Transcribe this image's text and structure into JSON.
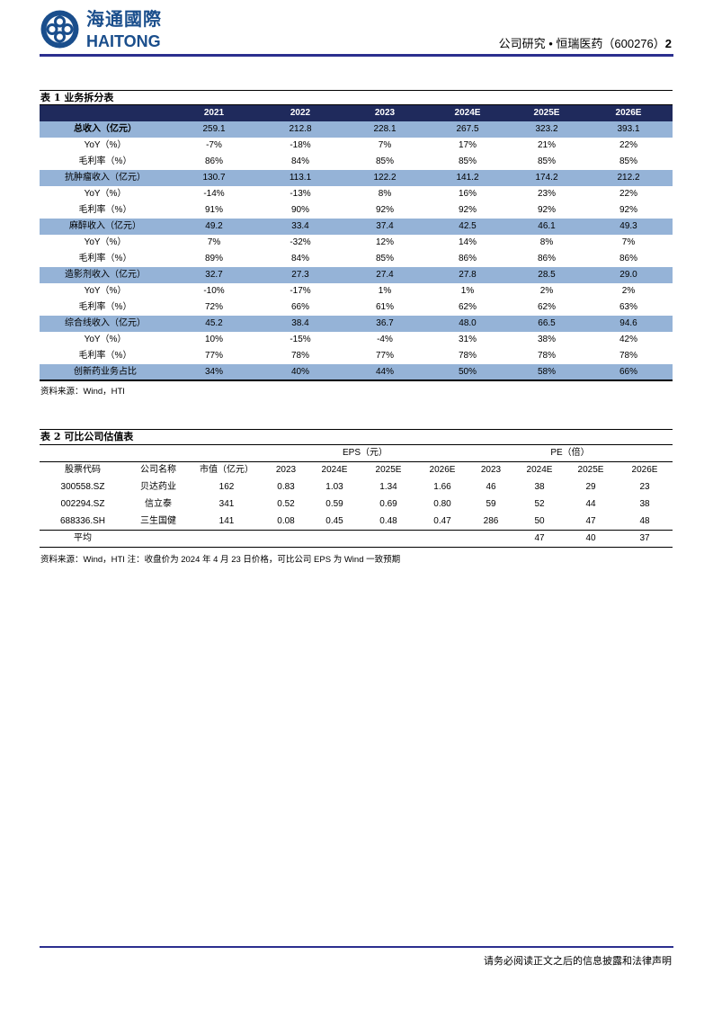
{
  "header": {
    "logo_cn": "海通國際",
    "logo_en": "HAITONG",
    "doc_label": "公司研究 • 恒瑞医药（600276）",
    "page": "2",
    "brand_color": "#1a4e8c",
    "rule_color": "#2b2f8f"
  },
  "table1": {
    "title": "表 1 业务拆分表",
    "columns": [
      "",
      "2021",
      "2022",
      "2023",
      "2024E",
      "2025E",
      "2026E"
    ],
    "rows": [
      {
        "label": "总收入（亿元）",
        "values": [
          "259.1",
          "212.8",
          "228.1",
          "267.5",
          "323.2",
          "393.1"
        ],
        "style": "blue-bold"
      },
      {
        "label": "YoY（%）",
        "values": [
          "-7%",
          "-18%",
          "7%",
          "17%",
          "21%",
          "22%"
        ]
      },
      {
        "label": "毛利率（%）",
        "values": [
          "86%",
          "84%",
          "85%",
          "85%",
          "85%",
          "85%"
        ]
      },
      {
        "label": "抗肿瘤收入（亿元）",
        "values": [
          "130.7",
          "113.1",
          "122.2",
          "141.2",
          "174.2",
          "212.2"
        ],
        "style": "blue"
      },
      {
        "label": "YoY（%）",
        "values": [
          "-14%",
          "-13%",
          "8%",
          "16%",
          "23%",
          "22%"
        ]
      },
      {
        "label": "毛利率（%）",
        "values": [
          "91%",
          "90%",
          "92%",
          "92%",
          "92%",
          "92%"
        ]
      },
      {
        "label": "麻醉收入（亿元）",
        "values": [
          "49.2",
          "33.4",
          "37.4",
          "42.5",
          "46.1",
          "49.3"
        ],
        "style": "blue"
      },
      {
        "label": "YoY（%）",
        "values": [
          "7%",
          "-32%",
          "12%",
          "14%",
          "8%",
          "7%"
        ]
      },
      {
        "label": "毛利率（%）",
        "values": [
          "89%",
          "84%",
          "85%",
          "86%",
          "86%",
          "86%"
        ]
      },
      {
        "label": "造影剂收入（亿元）",
        "values": [
          "32.7",
          "27.3",
          "27.4",
          "27.8",
          "28.5",
          "29.0"
        ],
        "style": "blue"
      },
      {
        "label": "YoY（%）",
        "values": [
          "-10%",
          "-17%",
          "1%",
          "1%",
          "2%",
          "2%"
        ]
      },
      {
        "label": "毛利率（%）",
        "values": [
          "72%",
          "66%",
          "61%",
          "62%",
          "62%",
          "63%"
        ]
      },
      {
        "label": "综合线收入（亿元）",
        "values": [
          "45.2",
          "38.4",
          "36.7",
          "48.0",
          "66.5",
          "94.6"
        ],
        "style": "blue"
      },
      {
        "label": "YoY（%）",
        "values": [
          "10%",
          "-15%",
          "-4%",
          "31%",
          "38%",
          "42%"
        ]
      },
      {
        "label": "毛利率（%）",
        "values": [
          "77%",
          "78%",
          "77%",
          "78%",
          "78%",
          "78%"
        ]
      },
      {
        "label": "创新药业务占比",
        "values": [
          "34%",
          "40%",
          "44%",
          "50%",
          "58%",
          "66%"
        ],
        "style": "blue"
      }
    ],
    "source": "资料来源：Wind，HTI",
    "header_color": "#1f2a5c",
    "band_color": "#95b3d7"
  },
  "table2": {
    "title": "表 2 可比公司估值表",
    "group_eps": "EPS（元）",
    "group_pe": "PE（倍）",
    "columns": [
      "股票代码",
      "公司名称",
      "市值（亿元）",
      "2023",
      "2024E",
      "2025E",
      "2026E",
      "2023",
      "2024E",
      "2025E",
      "2026E"
    ],
    "rows": [
      [
        "300558.SZ",
        "贝达药业",
        "162",
        "0.83",
        "1.03",
        "1.34",
        "1.66",
        "46",
        "38",
        "29",
        "23"
      ],
      [
        "002294.SZ",
        "信立泰",
        "341",
        "0.52",
        "0.59",
        "0.69",
        "0.80",
        "59",
        "52",
        "44",
        "38"
      ],
      [
        "688336.SH",
        "三生国健",
        "141",
        "0.08",
        "0.45",
        "0.48",
        "0.47",
        "286",
        "50",
        "47",
        "48"
      ]
    ],
    "average": [
      "平均",
      "",
      "",
      "",
      "",
      "",
      "",
      "",
      "47",
      "40",
      "37"
    ],
    "source": "资料来源：Wind，HTI 注：收盘价为 2024 年 4 月 23 日价格，可比公司 EPS 为 Wind 一致预期"
  },
  "footer": {
    "disclaimer": "请务必阅读正文之后的信息披露和法律声明"
  }
}
